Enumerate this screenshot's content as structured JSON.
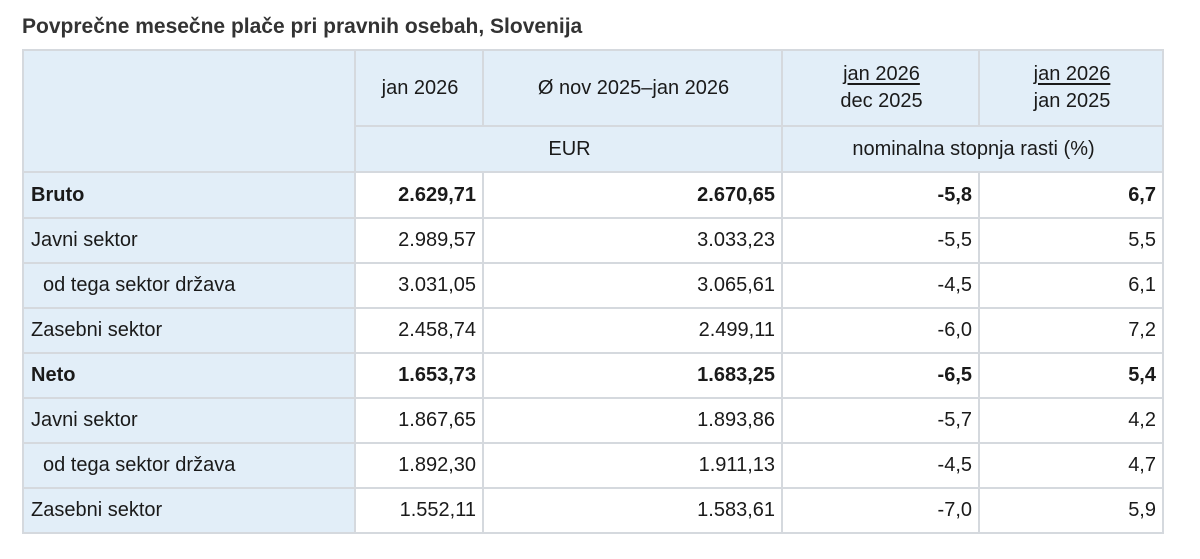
{
  "title": "Povprečne mesečne plače pri pravnih osebah, Slovenija",
  "header": {
    "col1": "jan 2026",
    "col2": "Ø nov 2025–jan 2026",
    "col3_num": "jan 2026",
    "col3_den": "dec 2025",
    "col4_num": "jan 2026",
    "col4_den": "jan 2025",
    "unit_eur": "EUR",
    "unit_rate": "nominalna stopnja rasti (%)"
  },
  "rows": [
    {
      "label": "Bruto",
      "v1": "2.629,71",
      "v2": "2.670,65",
      "v3": "-5,8",
      "v4": "6,7"
    },
    {
      "label": "Javni sektor",
      "v1": "2.989,57",
      "v2": "3.033,23",
      "v3": "-5,5",
      "v4": "5,5"
    },
    {
      "label": "od tega sektor država",
      "v1": "3.031,05",
      "v2": "3.065,61",
      "v3": "-4,5",
      "v4": "6,1"
    },
    {
      "label": "Zasebni sektor",
      "v1": "2.458,74",
      "v2": "2.499,11",
      "v3": "-6,0",
      "v4": "7,2"
    },
    {
      "label": "Neto",
      "v1": "1.653,73",
      "v2": "1.683,25",
      "v3": "-6,5",
      "v4": "5,4"
    },
    {
      "label": "Javni sektor",
      "v1": "1.867,65",
      "v2": "1.893,86",
      "v3": "-5,7",
      "v4": "4,2"
    },
    {
      "label": "od tega sektor država",
      "v1": "1.892,30",
      "v2": "1.911,13",
      "v3": "-4,5",
      "v4": "4,7"
    },
    {
      "label": "Zasebni sektor",
      "v1": "1.552,11",
      "v2": "1.583,61",
      "v3": "-7,0",
      "v4": "5,9"
    }
  ],
  "colors": {
    "header_bg": "#e2eef8",
    "border": "#d5d9de",
    "title_text": "#333333"
  }
}
